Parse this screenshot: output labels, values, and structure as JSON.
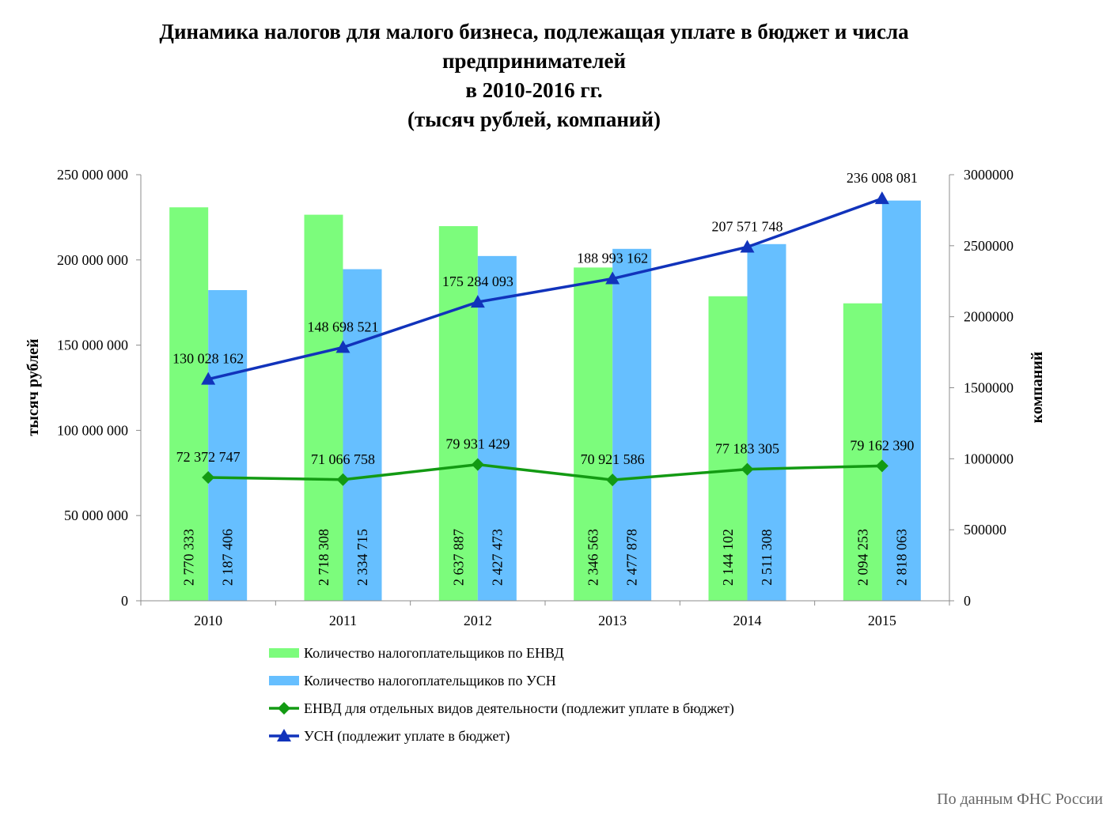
{
  "chart_data": {
    "type": "bar",
    "title_lines": [
      "Динамика налогов для малого бизнеса, подлежащая уплате в бюджет  и числа",
      "предпринимателей",
      "в 2010-2016 гг.",
      "(тысяч рублей, компаний)"
    ],
    "ylabel": "тысяч рублей",
    "y2label": "компаний",
    "categories": [
      "2010",
      "2011",
      "2012",
      "2013",
      "2014",
      "2015"
    ],
    "ylim": [
      0,
      250000000
    ],
    "y2lim": [
      0,
      3000000
    ],
    "y_ticks": [
      {
        "value": 0,
        "label": "0"
      },
      {
        "value": 50000000,
        "label": "50 000 000"
      },
      {
        "value": 100000000,
        "label": "100 000 000"
      },
      {
        "value": 150000000,
        "label": "150 000 000"
      },
      {
        "value": 200000000,
        "label": "200 000 000"
      },
      {
        "value": 250000000,
        "label": "250 000 000"
      }
    ],
    "y2_ticks": [
      {
        "value": 0,
        "label": "0"
      },
      {
        "value": 500000,
        "label": "500000"
      },
      {
        "value": 1000000,
        "label": "1000000"
      },
      {
        "value": 1500000,
        "label": "1500000"
      },
      {
        "value": 2000000,
        "label": "2000000"
      },
      {
        "value": 2500000,
        "label": "2500000"
      },
      {
        "value": 3000000,
        "label": "3000000"
      }
    ],
    "bars": [
      {
        "name": "Количество налогоплательщиков по ЕНВД",
        "color": "#7cfc7c",
        "axis": "right",
        "values": [
          2770333,
          2718308,
          2637887,
          2346563,
          2144102,
          2094253
        ],
        "labels": [
          "2 770 333",
          "2 718 308",
          "2 637 887",
          "2 346 563",
          "2 144 102",
          "2 094 253"
        ]
      },
      {
        "name": "Количество налогоплательщиков по УСН",
        "color": "#66bfff",
        "axis": "right",
        "values": [
          2187406,
          2334715,
          2427473,
          2477878,
          2511308,
          2818063
        ],
        "labels": [
          "2 187 406",
          "2 334 715",
          "2 427 473",
          "2 477 878",
          "2 511 308",
          "2 818 063"
        ]
      }
    ],
    "lines": [
      {
        "name": "ЕНВД для отдельных видов деятельности (подлежит уплате в бюджет)",
        "color": "#139a13",
        "marker": "diamond",
        "axis": "left",
        "values": [
          72372747,
          71066758,
          79931429,
          70921586,
          77183305,
          79162390
        ],
        "labels": [
          "72 372 747",
          "71 066 758",
          "79 931 429",
          "70 921 586",
          "77 183 305",
          "79 162 390"
        ]
      },
      {
        "name": "УСН (подлежит уплате  в бюджет)",
        "color": "#1133bb",
        "marker": "triangle",
        "axis": "left",
        "values": [
          130028162,
          148698521,
          175284093,
          188993162,
          207571748,
          236008081
        ],
        "labels": [
          "130 028 162",
          "148 698 521",
          "175 284 093",
          "188 993 162",
          "207 571 748",
          "236 008 081"
        ]
      }
    ],
    "legend_position": "bottom",
    "grid": false
  },
  "source": "По данным ФНС России"
}
